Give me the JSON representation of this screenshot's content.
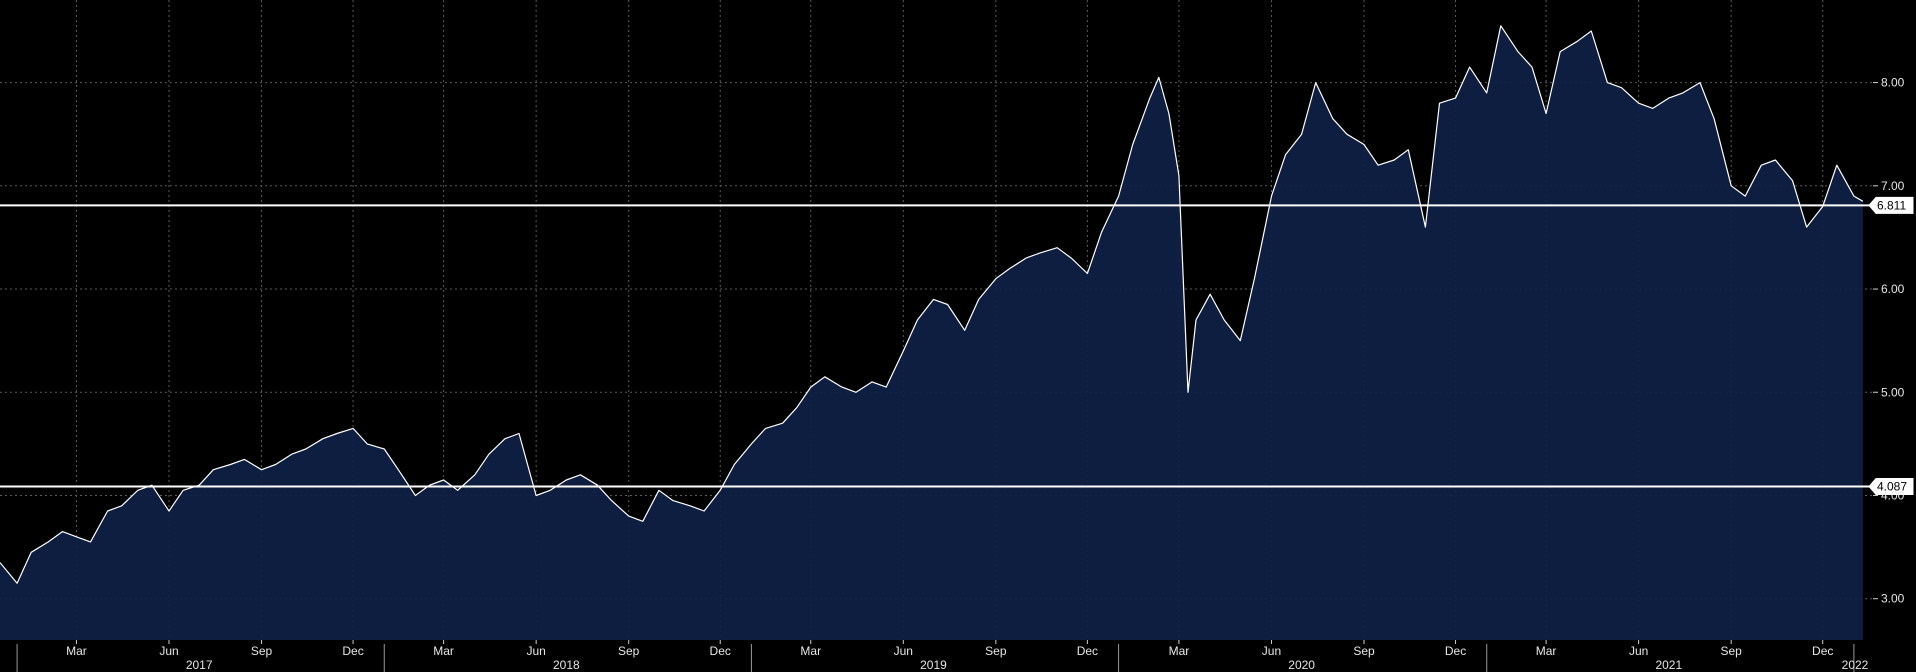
{
  "chart_data": {
    "type": "area",
    "title": "",
    "xlabel": "",
    "ylabel": "",
    "x_range": [
      "2016-12-15",
      "2022-01-20"
    ],
    "ylim": [
      2.6,
      8.8
    ],
    "y_ticks": [
      "3.00",
      "4.00",
      "5.00",
      "6.00",
      "7.00",
      "8.00"
    ],
    "y_tick_values": [
      3,
      4,
      5,
      6,
      7,
      8
    ],
    "month_ticks": [
      {
        "label": "Mar",
        "date": "2017-03-01"
      },
      {
        "label": "Jun",
        "date": "2017-06-01"
      },
      {
        "label": "Sep",
        "date": "2017-09-01"
      },
      {
        "label": "Dec",
        "date": "2017-12-01"
      },
      {
        "label": "Mar",
        "date": "2018-03-01"
      },
      {
        "label": "Jun",
        "date": "2018-06-01"
      },
      {
        "label": "Sep",
        "date": "2018-09-01"
      },
      {
        "label": "Dec",
        "date": "2018-12-01"
      },
      {
        "label": "Mar",
        "date": "2019-03-01"
      },
      {
        "label": "Jun",
        "date": "2019-06-01"
      },
      {
        "label": "Sep",
        "date": "2019-09-01"
      },
      {
        "label": "Dec",
        "date": "2019-12-01"
      },
      {
        "label": "Mar",
        "date": "2020-03-01"
      },
      {
        "label": "Jun",
        "date": "2020-06-01"
      },
      {
        "label": "Sep",
        "date": "2020-09-01"
      },
      {
        "label": "Dec",
        "date": "2020-12-01"
      },
      {
        "label": "Mar",
        "date": "2021-03-01"
      },
      {
        "label": "Jun",
        "date": "2021-06-01"
      },
      {
        "label": "Sep",
        "date": "2021-09-01"
      },
      {
        "label": "Dec",
        "date": "2021-12-01"
      }
    ],
    "year_labels": [
      {
        "label": "2017",
        "date": "2017-07-01"
      },
      {
        "label": "2018",
        "date": "2018-07-01"
      },
      {
        "label": "2019",
        "date": "2019-07-01"
      },
      {
        "label": "2020",
        "date": "2020-07-01"
      },
      {
        "label": "2021",
        "date": "2021-07-01"
      },
      {
        "label": "2022",
        "date": "2022-01-10"
      }
    ],
    "year_boundaries": [
      "2017-01-01",
      "2018-01-01",
      "2019-01-01",
      "2020-01-01",
      "2021-01-01",
      "2022-01-01"
    ],
    "reference_lines": [
      {
        "label": "6.811",
        "value": 6.811
      },
      {
        "label": "4.087",
        "value": 4.087
      }
    ],
    "grid": true,
    "series": [
      {
        "x": [
          "2016-12-15",
          "2017-01-01",
          "2017-01-15",
          "2017-02-01",
          "2017-02-15",
          "2017-03-01",
          "2017-03-15",
          "2017-04-01",
          "2017-04-15",
          "2017-05-01",
          "2017-05-15",
          "2017-06-01",
          "2017-06-15",
          "2017-07-01",
          "2017-07-15",
          "2017-08-01",
          "2017-08-15",
          "2017-09-01",
          "2017-09-15",
          "2017-10-01",
          "2017-10-15",
          "2017-11-01",
          "2017-11-15",
          "2017-12-01",
          "2017-12-15",
          "2018-01-01",
          "2018-01-15",
          "2018-02-01",
          "2018-02-15",
          "2018-03-01",
          "2018-03-15",
          "2018-04-01",
          "2018-04-15",
          "2018-05-01",
          "2018-05-15",
          "2018-06-01",
          "2018-06-15",
          "2018-07-01",
          "2018-07-15",
          "2018-08-01",
          "2018-08-15",
          "2018-09-01",
          "2018-09-15",
          "2018-10-01",
          "2018-10-15",
          "2018-11-01",
          "2018-11-15",
          "2018-12-01",
          "2018-12-15",
          "2019-01-01",
          "2019-01-15",
          "2019-02-01",
          "2019-02-15",
          "2019-03-01",
          "2019-03-15",
          "2019-04-01",
          "2019-04-15",
          "2019-05-01",
          "2019-05-15",
          "2019-06-01",
          "2019-06-15",
          "2019-07-01",
          "2019-07-15",
          "2019-08-01",
          "2019-08-15",
          "2019-09-01",
          "2019-09-15",
          "2019-10-01",
          "2019-10-15",
          "2019-11-01",
          "2019-11-15",
          "2019-12-01",
          "2019-12-15",
          "2020-01-01",
          "2020-01-15",
          "2020-02-01",
          "2020-02-10",
          "2020-02-20",
          "2020-03-01",
          "2020-03-10",
          "2020-03-18",
          "2020-04-01",
          "2020-04-15",
          "2020-05-01",
          "2020-05-15",
          "2020-06-01",
          "2020-06-15",
          "2020-07-01",
          "2020-07-15",
          "2020-08-01",
          "2020-08-15",
          "2020-09-01",
          "2020-09-15",
          "2020-10-01",
          "2020-10-15",
          "2020-11-01",
          "2020-11-15",
          "2020-12-01",
          "2020-12-15",
          "2021-01-01",
          "2021-01-15",
          "2021-02-01",
          "2021-02-15",
          "2021-03-01",
          "2021-03-15",
          "2021-04-01",
          "2021-04-15",
          "2021-05-01",
          "2021-05-15",
          "2021-06-01",
          "2021-06-15",
          "2021-07-01",
          "2021-07-15",
          "2021-08-01",
          "2021-08-15",
          "2021-09-01",
          "2021-09-15",
          "2021-10-01",
          "2021-10-15",
          "2021-11-01",
          "2021-11-15",
          "2021-12-01",
          "2021-12-15",
          "2022-01-01",
          "2022-01-10"
        ],
        "values": [
          3.35,
          3.15,
          3.45,
          3.55,
          3.65,
          3.6,
          3.55,
          3.85,
          3.9,
          4.05,
          4.1,
          3.85,
          4.05,
          4.1,
          4.25,
          4.3,
          4.35,
          4.25,
          4.3,
          4.4,
          4.45,
          4.55,
          4.6,
          4.65,
          4.5,
          4.45,
          4.25,
          4.0,
          4.1,
          4.15,
          4.05,
          4.2,
          4.4,
          4.55,
          4.6,
          4.0,
          4.05,
          4.15,
          4.2,
          4.1,
          3.95,
          3.8,
          3.75,
          4.05,
          3.95,
          3.9,
          3.85,
          4.05,
          4.3,
          4.5,
          4.65,
          4.7,
          4.85,
          5.05,
          5.15,
          5.05,
          5.0,
          5.1,
          5.05,
          5.4,
          5.7,
          5.9,
          5.85,
          5.6,
          5.9,
          6.1,
          6.2,
          6.3,
          6.35,
          6.4,
          6.3,
          6.15,
          6.55,
          6.9,
          7.4,
          7.85,
          8.05,
          7.7,
          7.1,
          5.0,
          5.7,
          5.95,
          5.7,
          5.5,
          6.1,
          6.9,
          7.3,
          7.5,
          8.0,
          7.65,
          7.5,
          7.4,
          7.2,
          7.25,
          7.35,
          6.6,
          7.8,
          7.85,
          8.15,
          7.9,
          8.55,
          8.3,
          8.15,
          7.7,
          8.3,
          8.4,
          8.5,
          8.0,
          7.95,
          7.8,
          7.75,
          7.85,
          7.9,
          8.0,
          7.65,
          7.0,
          6.9,
          7.2,
          7.25,
          7.05,
          6.6,
          6.8,
          7.2,
          6.9,
          6.85
        ]
      }
    ]
  }
}
